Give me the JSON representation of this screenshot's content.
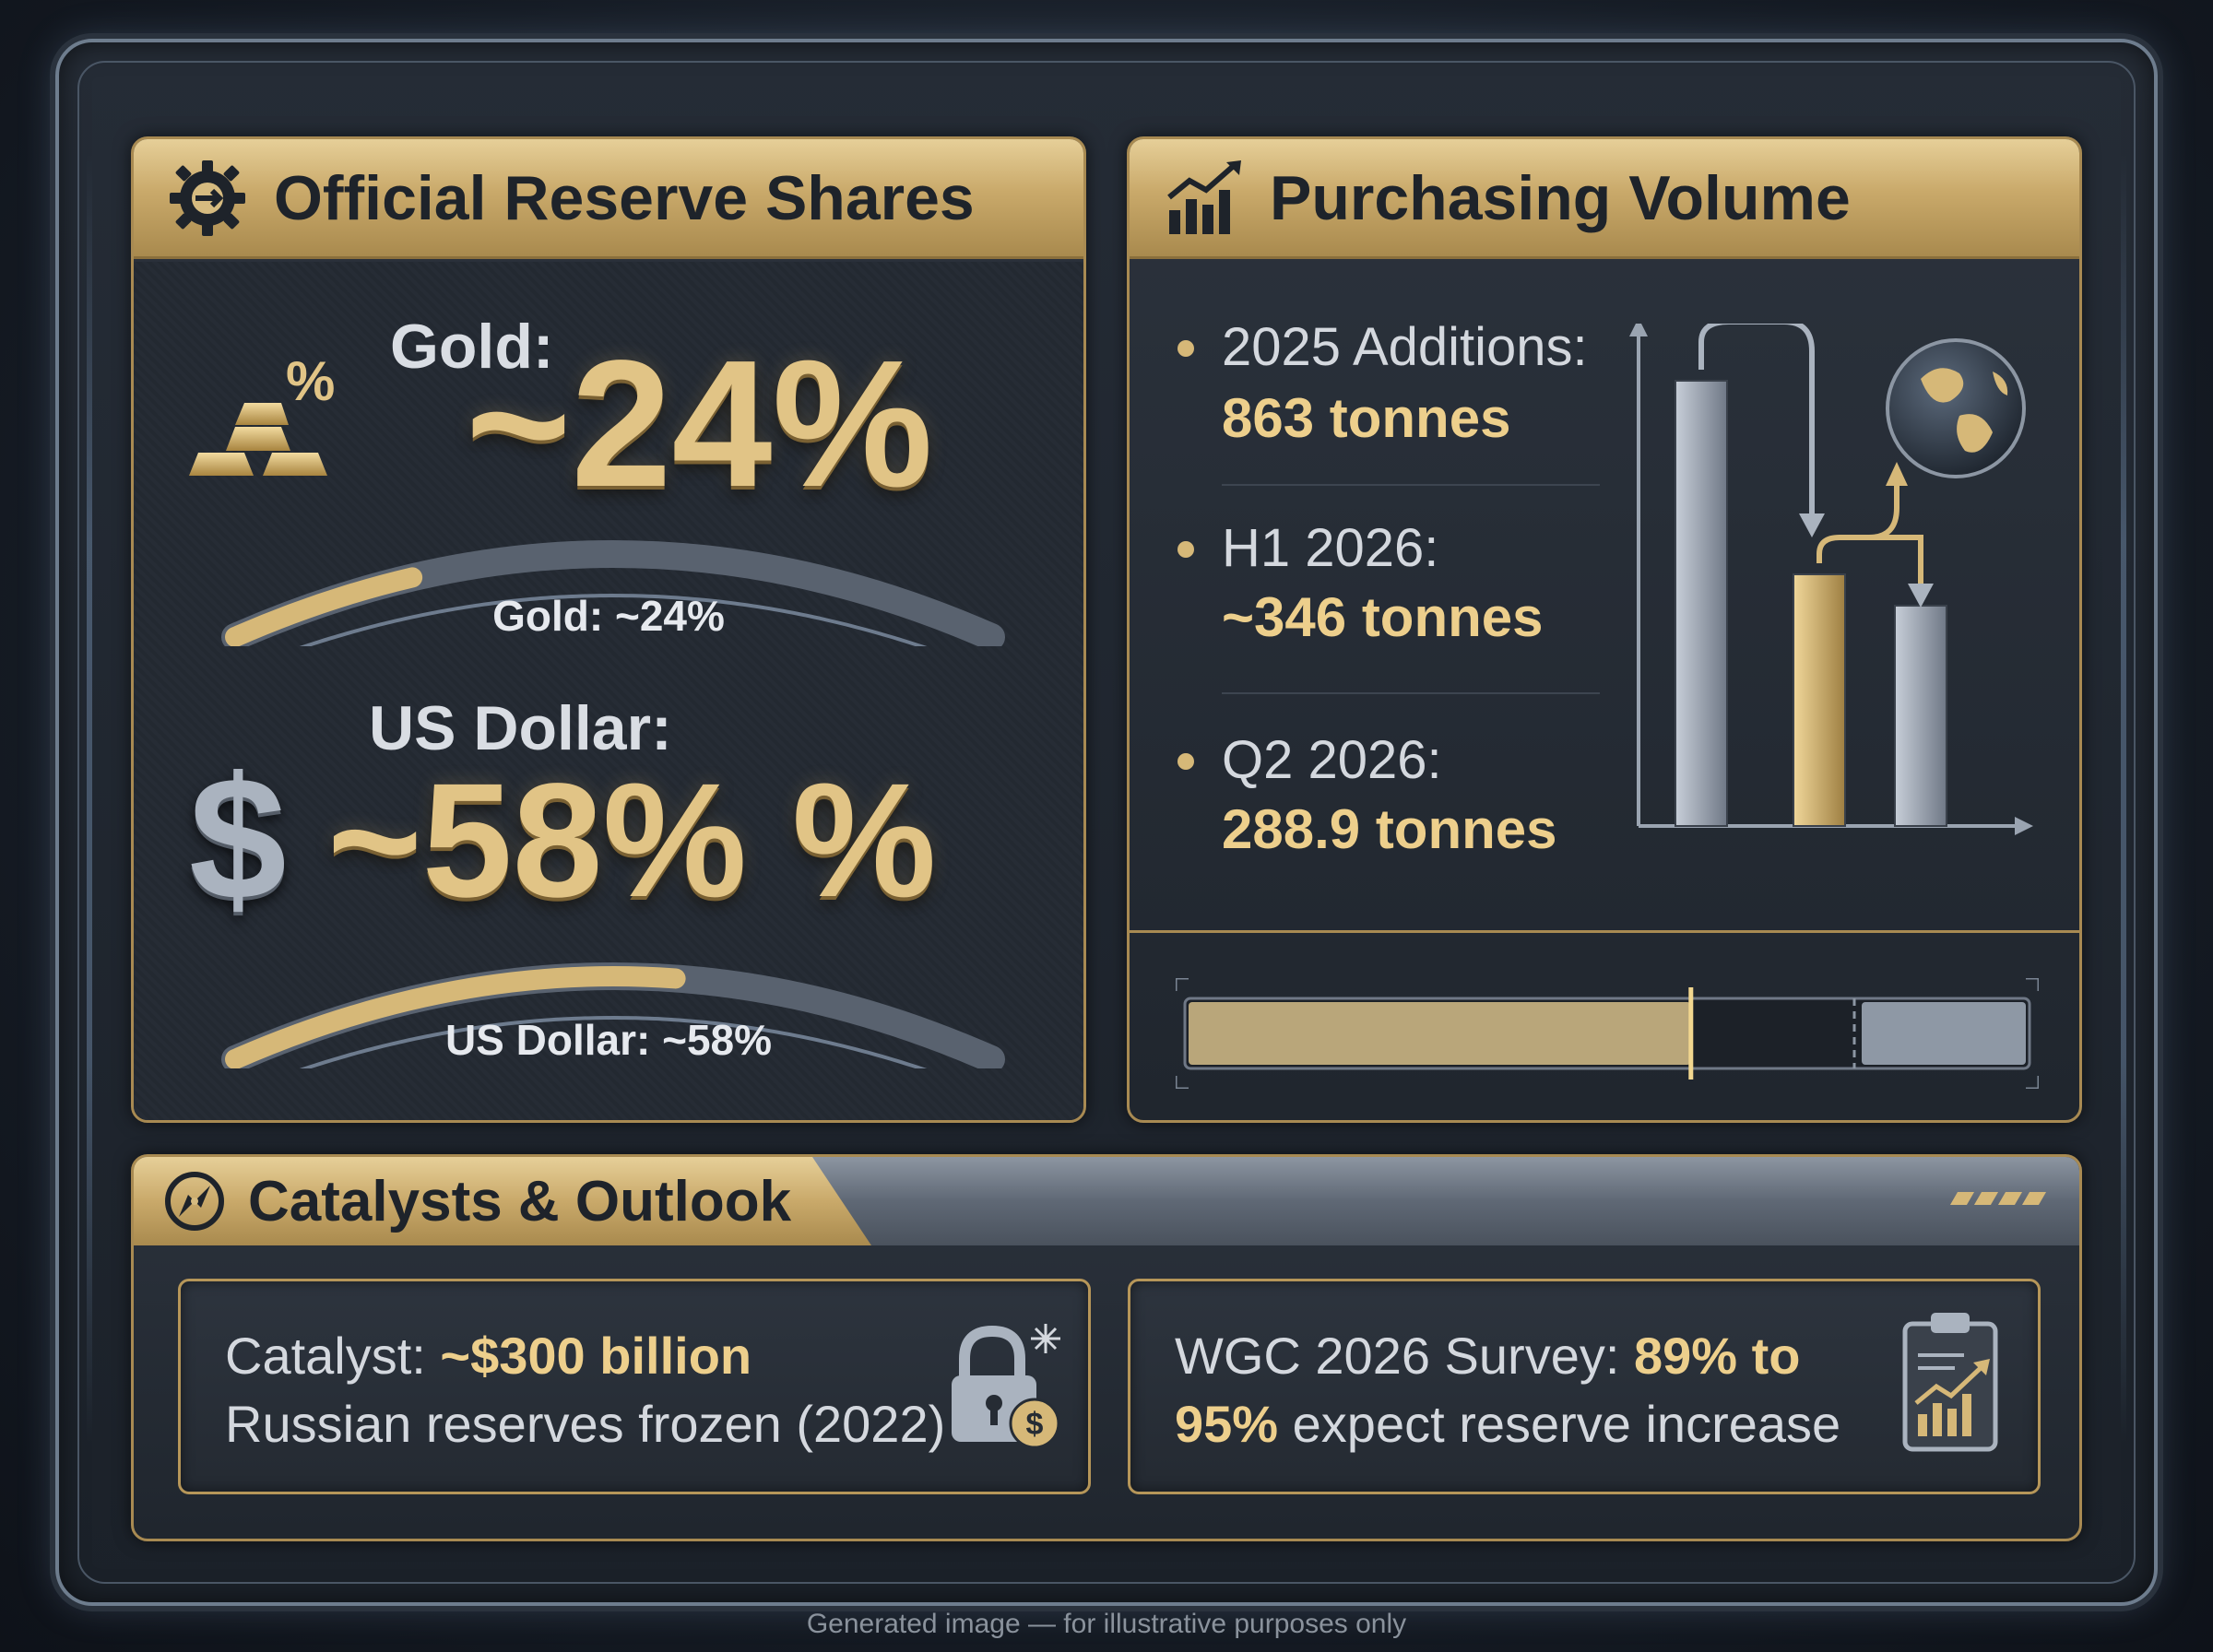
{
  "left_panel": {
    "title": "Official Reserve Shares",
    "pct_icon_text": "%",
    "gold_label": "Gold:",
    "gold_value": "~24%",
    "gold_share_fraction": 0.24,
    "gold_arc_label": "Gold: ~24%",
    "usd_label": "US Dollar:",
    "usd_symbol": "$",
    "usd_value": "~58% %",
    "usd_share_fraction": 0.58,
    "usd_arc_label": "US Dollar: ~58%"
  },
  "right_panel": {
    "title": "Purchasing Volume",
    "stats": [
      {
        "label": "2025 Additions:",
        "value": "863 tonnes"
      },
      {
        "label": "H1 2026:",
        "value": "~346 tonnes"
      },
      {
        "label": "Q2 2026:",
        "value": "288.9 tonnes"
      }
    ],
    "progress_fraction": 0.6
  },
  "bottom_panel": {
    "title": "Catalysts & Outlook",
    "card_left": {
      "prefix": "Catalyst: ",
      "highlight": "~$300 billion",
      "line2": "Russian reserves frozen (2022)"
    },
    "card_right": {
      "prefix": "WGC 2026 Survey: ",
      "highlight1": "89% to",
      "highlight2": "95%",
      "suffix": " expect reserve increase"
    }
  },
  "footer": "Generated image — for illustrative purposes only",
  "colors": {
    "gold": "#e1c486",
    "gold_header": "#c9a96a",
    "panel_bg": "#252c36",
    "text_light": "#d4d8de",
    "silver": "#aab3bf"
  }
}
